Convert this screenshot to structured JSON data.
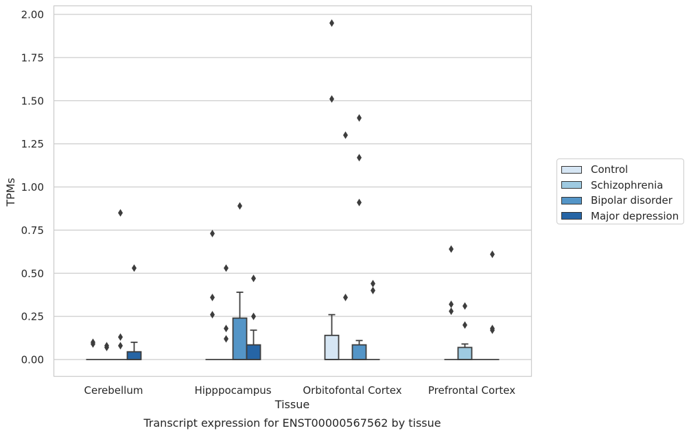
{
  "chart_data": {
    "type": "box",
    "title": "",
    "caption": "Transcript expression for ENST00000567562 by tissue",
    "xlabel": "Tissue",
    "ylabel": "TPMs",
    "ylim": [
      -0.1,
      2.05
    ],
    "yticks": [
      0.0,
      0.25,
      0.5,
      0.75,
      1.0,
      1.25,
      1.5,
      1.75,
      2.0
    ],
    "ytick_labels": [
      "0.00",
      "0.25",
      "0.50",
      "0.75",
      "1.00",
      "1.25",
      "1.50",
      "1.75",
      "2.00"
    ],
    "grid": "horizontal",
    "legend_placement": "outside-right",
    "categories": [
      "Cerebellum",
      "Hipppocampus",
      "Orbitofontal Cortex",
      "Prefrontal Cortex"
    ],
    "series": [
      {
        "name": "Control",
        "color": "#d6e6f4"
      },
      {
        "name": "Schizophrenia",
        "color": "#9ecae1"
      },
      {
        "name": "Bipolar disorder",
        "color": "#5495c7"
      },
      {
        "name": "Major depression",
        "color": "#2665a5"
      }
    ],
    "boxes": [
      {
        "category": "Cerebellum",
        "series": "Control",
        "q1": 0,
        "median": 0,
        "q3": 0,
        "whisker_low": 0,
        "whisker_high": 0,
        "outliers": [
          0.09,
          0.1
        ]
      },
      {
        "category": "Cerebellum",
        "series": "Schizophrenia",
        "q1": 0,
        "median": 0,
        "q3": 0,
        "whisker_low": 0,
        "whisker_high": 0,
        "outliers": [
          0.07,
          0.08
        ]
      },
      {
        "category": "Cerebellum",
        "series": "Bipolar disorder",
        "q1": 0,
        "median": 0,
        "q3": 0,
        "whisker_low": 0,
        "whisker_high": 0,
        "outliers": [
          0.08,
          0.13,
          0.85
        ]
      },
      {
        "category": "Cerebellum",
        "series": "Major depression",
        "q1": 0,
        "median": 0,
        "q3": 0.045,
        "whisker_low": 0,
        "whisker_high": 0.1,
        "outliers": [
          0.53
        ]
      },
      {
        "category": "Hipppocampus",
        "series": "Control",
        "q1": 0,
        "median": 0,
        "q3": 0,
        "whisker_low": 0,
        "whisker_high": 0,
        "outliers": [
          0.26,
          0.36,
          0.73
        ]
      },
      {
        "category": "Hipppocampus",
        "series": "Schizophrenia",
        "q1": 0,
        "median": 0,
        "q3": 0,
        "whisker_low": 0,
        "whisker_high": 0,
        "outliers": [
          0.12,
          0.18,
          0.53
        ]
      },
      {
        "category": "Hipppocampus",
        "series": "Bipolar disorder",
        "q1": 0,
        "median": 0,
        "q3": 0.24,
        "whisker_low": 0,
        "whisker_high": 0.39,
        "outliers": [
          0.89
        ]
      },
      {
        "category": "Hipppocampus",
        "series": "Major depression",
        "q1": 0,
        "median": 0,
        "q3": 0.085,
        "whisker_low": 0,
        "whisker_high": 0.17,
        "outliers": [
          0.25,
          0.47
        ]
      },
      {
        "category": "Orbitofontal Cortex",
        "series": "Control",
        "q1": 0,
        "median": 0,
        "q3": 0.14,
        "whisker_low": 0,
        "whisker_high": 0.26,
        "outliers": [
          1.51,
          1.95
        ]
      },
      {
        "category": "Orbitofontal Cortex",
        "series": "Schizophrenia",
        "q1": 0,
        "median": 0,
        "q3": 0,
        "whisker_low": 0,
        "whisker_high": 0,
        "outliers": [
          0.36,
          1.3
        ]
      },
      {
        "category": "Orbitofontal Cortex",
        "series": "Bipolar disorder",
        "q1": 0,
        "median": 0,
        "q3": 0.085,
        "whisker_low": 0,
        "whisker_high": 0.11,
        "outliers": [
          0.91,
          1.17,
          1.4
        ]
      },
      {
        "category": "Orbitofontal Cortex",
        "series": "Major depression",
        "q1": 0,
        "median": 0,
        "q3": 0,
        "whisker_low": 0,
        "whisker_high": 0,
        "outliers": [
          0.4,
          0.44
        ]
      },
      {
        "category": "Prefrontal Cortex",
        "series": "Control",
        "q1": 0,
        "median": 0,
        "q3": 0,
        "whisker_low": 0,
        "whisker_high": 0,
        "outliers": [
          0.28,
          0.32,
          0.64
        ]
      },
      {
        "category": "Prefrontal Cortex",
        "series": "Schizophrenia",
        "q1": 0,
        "median": 0,
        "q3": 0.07,
        "whisker_low": 0,
        "whisker_high": 0.09,
        "outliers": [
          0.2,
          0.31
        ]
      },
      {
        "category": "Prefrontal Cortex",
        "series": "Bipolar disorder",
        "q1": 0,
        "median": 0,
        "q3": 0,
        "whisker_low": 0,
        "whisker_high": 0,
        "outliers": []
      },
      {
        "category": "Prefrontal Cortex",
        "series": "Major depression",
        "q1": 0,
        "median": 0,
        "q3": 0,
        "whisker_low": 0,
        "whisker_high": 0,
        "outliers": [
          0.17,
          0.18,
          0.61
        ]
      }
    ]
  }
}
